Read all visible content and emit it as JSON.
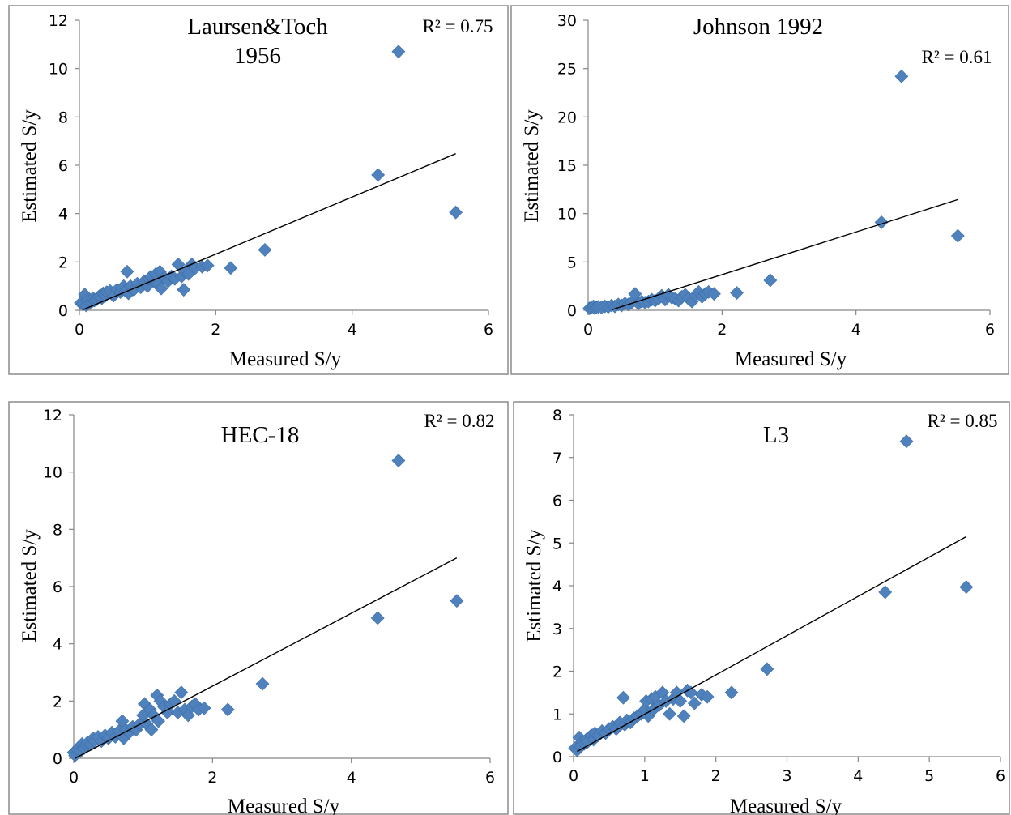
{
  "colors": {
    "marker": "#4f81bd",
    "trendline": "#000000",
    "frame": "#8c8c8c"
  },
  "chart_data": [
    {
      "type": "scatter",
      "title": "Laursen&Toch 1956",
      "title_lines": [
        "Laursen&Toch",
        "1956"
      ],
      "xlabel": "Measured S/y",
      "ylabel": "Estimated S/y",
      "xlim": [
        0,
        6
      ],
      "ylim": [
        0,
        12
      ],
      "xticks": [
        0,
        2,
        4,
        6
      ],
      "yticks": [
        0,
        2,
        4,
        6,
        8,
        10,
        12
      ],
      "r2_label": "R² = 0.75",
      "trendline": {
        "x": [
          0.05,
          5.52
        ],
        "y": [
          0.02,
          6.48
        ]
      },
      "points": [
        [
          0.02,
          0.3
        ],
        [
          0.05,
          0.25
        ],
        [
          0.08,
          0.65
        ],
        [
          0.1,
          0.2
        ],
        [
          0.12,
          0.4
        ],
        [
          0.15,
          0.3
        ],
        [
          0.18,
          0.35
        ],
        [
          0.2,
          0.5
        ],
        [
          0.22,
          0.4
        ],
        [
          0.25,
          0.45
        ],
        [
          0.28,
          0.55
        ],
        [
          0.3,
          0.6
        ],
        [
          0.33,
          0.5
        ],
        [
          0.35,
          0.7
        ],
        [
          0.38,
          0.6
        ],
        [
          0.4,
          0.75
        ],
        [
          0.45,
          0.8
        ],
        [
          0.5,
          0.6
        ],
        [
          0.55,
          0.85
        ],
        [
          0.6,
          0.75
        ],
        [
          0.62,
          0.9
        ],
        [
          0.65,
          1.0
        ],
        [
          0.68,
          0.8
        ],
        [
          0.7,
          1.6
        ],
        [
          0.72,
          0.7
        ],
        [
          0.75,
          1.0
        ],
        [
          0.8,
          0.85
        ],
        [
          0.85,
          1.1
        ],
        [
          0.9,
          0.95
        ],
        [
          0.95,
          1.2
        ],
        [
          1.0,
          1.0
        ],
        [
          1.02,
          1.3
        ],
        [
          1.05,
          1.4
        ],
        [
          1.1,
          1.2
        ],
        [
          1.12,
          1.5
        ],
        [
          1.15,
          1.1
        ],
        [
          1.18,
          1.6
        ],
        [
          1.2,
          0.9
        ],
        [
          1.25,
          1.35
        ],
        [
          1.3,
          1.2
        ],
        [
          1.35,
          1.4
        ],
        [
          1.4,
          1.3
        ],
        [
          1.45,
          1.9
        ],
        [
          1.5,
          1.4
        ],
        [
          1.53,
          0.85
        ],
        [
          1.55,
          1.6
        ],
        [
          1.6,
          1.5
        ],
        [
          1.65,
          1.9
        ],
        [
          1.7,
          1.75
        ],
        [
          1.8,
          1.8
        ],
        [
          1.88,
          1.85
        ],
        [
          2.22,
          1.75
        ],
        [
          2.72,
          2.5
        ],
        [
          4.38,
          5.6
        ],
        [
          4.68,
          10.7
        ],
        [
          5.52,
          4.05
        ]
      ]
    },
    {
      "type": "scatter",
      "title": "Johnson 1992",
      "xlabel": "Measured S/y",
      "ylabel": "Estimated S/y",
      "xlim": [
        0,
        6
      ],
      "ylim": [
        0,
        30
      ],
      "xticks": [
        0,
        2,
        4,
        6
      ],
      "yticks": [
        0,
        5,
        10,
        15,
        20,
        25,
        30
      ],
      "r2_label": "R² = 0.61",
      "trendline": {
        "x": [
          0.35,
          5.52
        ],
        "y": [
          0.05,
          11.45
        ]
      },
      "points": [
        [
          0.02,
          0.2
        ],
        [
          0.05,
          0.3
        ],
        [
          0.08,
          0.4
        ],
        [
          0.1,
          0.2
        ],
        [
          0.12,
          0.3
        ],
        [
          0.15,
          0.35
        ],
        [
          0.2,
          0.3
        ],
        [
          0.25,
          0.4
        ],
        [
          0.3,
          0.35
        ],
        [
          0.35,
          0.5
        ],
        [
          0.4,
          0.4
        ],
        [
          0.45,
          0.6
        ],
        [
          0.5,
          0.5
        ],
        [
          0.55,
          0.7
        ],
        [
          0.6,
          0.6
        ],
        [
          0.65,
          0.8
        ],
        [
          0.7,
          1.7
        ],
        [
          0.75,
          0.7
        ],
        [
          0.8,
          0.9
        ],
        [
          0.85,
          0.8
        ],
        [
          0.9,
          0.9
        ],
        [
          0.95,
          1.1
        ],
        [
          1.0,
          1.0
        ],
        [
          1.05,
          1.2
        ],
        [
          1.1,
          1.5
        ],
        [
          1.15,
          1.1
        ],
        [
          1.2,
          1.6
        ],
        [
          1.25,
          1.3
        ],
        [
          1.3,
          1.2
        ],
        [
          1.35,
          1.0
        ],
        [
          1.4,
          1.4
        ],
        [
          1.45,
          1.6
        ],
        [
          1.5,
          1.2
        ],
        [
          1.55,
          0.9
        ],
        [
          1.6,
          1.5
        ],
        [
          1.65,
          1.9
        ],
        [
          1.7,
          1.4
        ],
        [
          1.75,
          1.7
        ],
        [
          1.8,
          1.9
        ],
        [
          1.88,
          1.7
        ],
        [
          2.22,
          1.8
        ],
        [
          2.72,
          3.1
        ],
        [
          4.38,
          9.1
        ],
        [
          4.68,
          24.2
        ],
        [
          5.52,
          7.7
        ]
      ]
    },
    {
      "type": "scatter",
      "title": "HEC-18",
      "xlabel": "Measured S/y",
      "ylabel": "Estimated S/y",
      "xlim": [
        0,
        6
      ],
      "ylim": [
        0,
        12
      ],
      "xticks": [
        0,
        2,
        4,
        6
      ],
      "yticks": [
        0,
        2,
        4,
        6,
        8,
        10,
        12
      ],
      "r2_label": "R² = 0.82",
      "trendline": {
        "x": [
          0.02,
          5.52
        ],
        "y": [
          0.0,
          7.0
        ]
      },
      "points": [
        [
          0.0,
          0.2
        ],
        [
          0.02,
          0.1
        ],
        [
          0.05,
          0.3
        ],
        [
          0.08,
          0.4
        ],
        [
          0.1,
          0.25
        ],
        [
          0.12,
          0.5
        ],
        [
          0.15,
          0.35
        ],
        [
          0.18,
          0.45
        ],
        [
          0.2,
          0.55
        ],
        [
          0.25,
          0.5
        ],
        [
          0.28,
          0.7
        ],
        [
          0.3,
          0.6
        ],
        [
          0.35,
          0.75
        ],
        [
          0.4,
          0.6
        ],
        [
          0.45,
          0.8
        ],
        [
          0.5,
          0.7
        ],
        [
          0.55,
          0.9
        ],
        [
          0.6,
          0.75
        ],
        [
          0.65,
          0.95
        ],
        [
          0.7,
          1.3
        ],
        [
          0.72,
          0.7
        ],
        [
          0.75,
          1.0
        ],
        [
          0.8,
          0.9
        ],
        [
          0.85,
          1.1
        ],
        [
          0.9,
          1.0
        ],
        [
          0.95,
          1.2
        ],
        [
          1.0,
          1.5
        ],
        [
          1.02,
          1.9
        ],
        [
          1.05,
          1.2
        ],
        [
          1.1,
          1.7
        ],
        [
          1.12,
          1.0
        ],
        [
          1.15,
          1.5
        ],
        [
          1.2,
          2.2
        ],
        [
          1.22,
          1.3
        ],
        [
          1.25,
          2.0
        ],
        [
          1.3,
          1.8
        ],
        [
          1.35,
          1.6
        ],
        [
          1.4,
          1.9
        ],
        [
          1.45,
          2.0
        ],
        [
          1.5,
          1.6
        ],
        [
          1.55,
          2.3
        ],
        [
          1.6,
          1.7
        ],
        [
          1.65,
          1.5
        ],
        [
          1.7,
          1.8
        ],
        [
          1.75,
          1.9
        ],
        [
          1.8,
          1.7
        ],
        [
          1.88,
          1.75
        ],
        [
          2.22,
          1.7
        ],
        [
          2.72,
          2.6
        ],
        [
          4.38,
          4.9
        ],
        [
          4.68,
          10.4
        ],
        [
          5.52,
          5.5
        ]
      ]
    },
    {
      "type": "scatter",
      "title": "L3",
      "xlabel": "Measured S/y",
      "ylabel": "Estimated S/y",
      "xlim": [
        0,
        6
      ],
      "ylim": [
        0,
        8
      ],
      "xticks": [
        0,
        1,
        2,
        3,
        4,
        5,
        6
      ],
      "yticks": [
        0,
        1,
        2,
        3,
        4,
        5,
        6,
        7,
        8
      ],
      "r2_label": "R² = 0.85",
      "trendline": {
        "x": [
          0.05,
          5.52
        ],
        "y": [
          0.12,
          5.15
        ]
      },
      "points": [
        [
          0.02,
          0.2
        ],
        [
          0.05,
          0.15
        ],
        [
          0.08,
          0.45
        ],
        [
          0.1,
          0.25
        ],
        [
          0.12,
          0.35
        ],
        [
          0.15,
          0.3
        ],
        [
          0.18,
          0.4
        ],
        [
          0.2,
          0.35
        ],
        [
          0.25,
          0.5
        ],
        [
          0.28,
          0.4
        ],
        [
          0.3,
          0.55
        ],
        [
          0.35,
          0.5
        ],
        [
          0.4,
          0.6
        ],
        [
          0.45,
          0.55
        ],
        [
          0.5,
          0.65
        ],
        [
          0.55,
          0.7
        ],
        [
          0.6,
          0.65
        ],
        [
          0.65,
          0.8
        ],
        [
          0.7,
          1.38
        ],
        [
          0.72,
          0.75
        ],
        [
          0.75,
          0.85
        ],
        [
          0.8,
          0.8
        ],
        [
          0.85,
          0.9
        ],
        [
          0.9,
          0.95
        ],
        [
          0.95,
          1.0
        ],
        [
          1.0,
          1.1
        ],
        [
          1.02,
          1.3
        ],
        [
          1.05,
          0.95
        ],
        [
          1.1,
          1.35
        ],
        [
          1.12,
          1.1
        ],
        [
          1.15,
          1.4
        ],
        [
          1.2,
          1.2
        ],
        [
          1.25,
          1.5
        ],
        [
          1.3,
          1.3
        ],
        [
          1.35,
          1.0
        ],
        [
          1.4,
          1.35
        ],
        [
          1.45,
          1.5
        ],
        [
          1.5,
          1.3
        ],
        [
          1.55,
          0.95
        ],
        [
          1.6,
          1.55
        ],
        [
          1.65,
          1.5
        ],
        [
          1.7,
          1.25
        ],
        [
          1.8,
          1.45
        ],
        [
          1.88,
          1.4
        ],
        [
          2.22,
          1.5
        ],
        [
          2.72,
          2.05
        ],
        [
          4.38,
          3.85
        ],
        [
          4.68,
          7.38
        ],
        [
          5.52,
          3.97
        ]
      ]
    }
  ]
}
